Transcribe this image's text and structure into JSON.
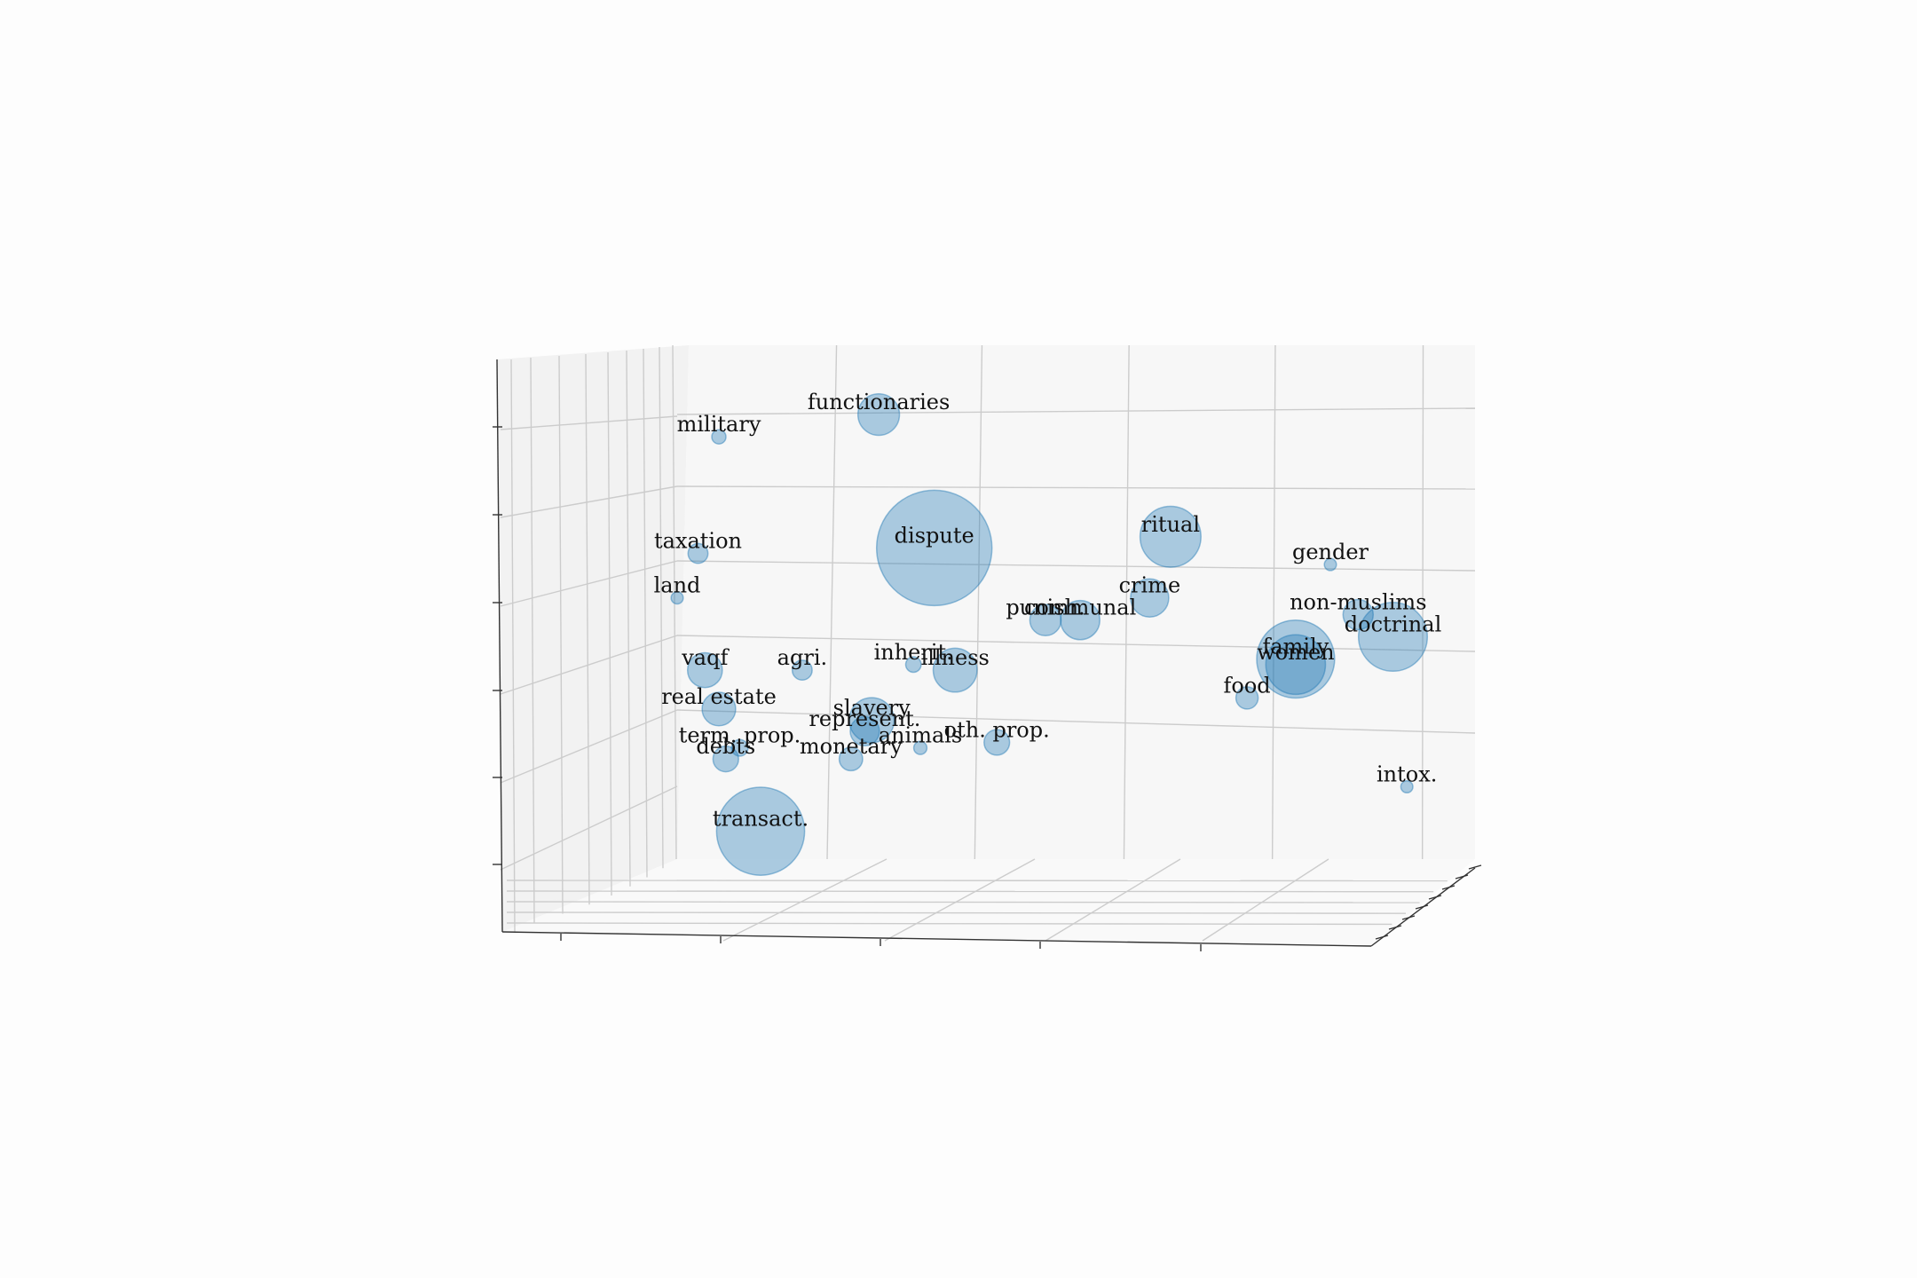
{
  "chart_data": {
    "type": "scatter",
    "projection": "3d",
    "title": "",
    "grid": true,
    "legend": "none",
    "bubble_color": "#1f77b4",
    "points": [
      {
        "label": "functionaries",
        "x": 0.29,
        "z": 0.88,
        "y": 0.5,
        "size": 35
      },
      {
        "label": "military",
        "x": 0.06,
        "z": 0.84,
        "y": 0.5,
        "size": 11
      },
      {
        "label": "dispute",
        "x": 0.37,
        "z": 0.64,
        "y": 0.5,
        "size": 100
      },
      {
        "label": "ritual",
        "x": 0.71,
        "z": 0.66,
        "y": 0.5,
        "size": 52
      },
      {
        "label": "taxation",
        "x": 0.03,
        "z": 0.63,
        "y": 0.5,
        "size": 16
      },
      {
        "label": "gender",
        "x": 0.94,
        "z": 0.61,
        "y": 0.5,
        "size": 9
      },
      {
        "label": "land",
        "x": 0.0,
        "z": 0.55,
        "y": 0.5,
        "size": 9
      },
      {
        "label": "crime",
        "x": 0.68,
        "z": 0.55,
        "y": 0.5,
        "size": 32
      },
      {
        "label": "non-muslims",
        "x": 0.98,
        "z": 0.52,
        "y": 0.5,
        "size": 25
      },
      {
        "label": "doctrinal",
        "x": 1.03,
        "z": 0.48,
        "y": 0.5,
        "size": 59
      },
      {
        "label": "punish.",
        "x": 0.53,
        "z": 0.51,
        "y": 0.5,
        "size": 26
      },
      {
        "label": "communal",
        "x": 0.58,
        "z": 0.51,
        "y": 0.5,
        "size": 33
      },
      {
        "label": "family",
        "x": 0.89,
        "z": 0.44,
        "y": 0.5,
        "size": 67
      },
      {
        "label": "women",
        "x": 0.89,
        "z": 0.43,
        "y": 0.5,
        "size": 51
      },
      {
        "label": "vaqf",
        "x": 0.04,
        "z": 0.42,
        "y": 0.5,
        "size": 29
      },
      {
        "label": "agri.",
        "x": 0.18,
        "z": 0.42,
        "y": 0.5,
        "size": 16
      },
      {
        "label": "inherit.",
        "x": 0.34,
        "z": 0.43,
        "y": 0.5,
        "size": 12
      },
      {
        "label": "illness",
        "x": 0.4,
        "z": 0.42,
        "y": 0.5,
        "size": 37
      },
      {
        "label": "food",
        "x": 0.82,
        "z": 0.37,
        "y": 0.5,
        "size": 18
      },
      {
        "label": "real estate",
        "x": 0.06,
        "z": 0.35,
        "y": 0.5,
        "size": 28
      },
      {
        "label": "slavery",
        "x": 0.28,
        "z": 0.33,
        "y": 0.5,
        "size": 38
      },
      {
        "label": "represent.",
        "x": 0.27,
        "z": 0.31,
        "y": 0.5,
        "size": 24
      },
      {
        "label": "oth. prop.",
        "x": 0.46,
        "z": 0.29,
        "y": 0.5,
        "size": 21
      },
      {
        "label": "animals",
        "x": 0.35,
        "z": 0.28,
        "y": 0.5,
        "size": 10
      },
      {
        "label": "term. prop.",
        "x": 0.09,
        "z": 0.28,
        "y": 0.5,
        "size": 13
      },
      {
        "label": "monetary",
        "x": 0.25,
        "z": 0.26,
        "y": 0.5,
        "size": 19
      },
      {
        "label": "debts",
        "x": 0.07,
        "z": 0.26,
        "y": 0.5,
        "size": 21
      },
      {
        "label": "intox.",
        "x": 1.05,
        "z": 0.21,
        "y": 0.5,
        "size": 9
      },
      {
        "label": "transact.",
        "x": 0.12,
        "z": 0.13,
        "y": 0.5,
        "size": 76
      }
    ]
  }
}
